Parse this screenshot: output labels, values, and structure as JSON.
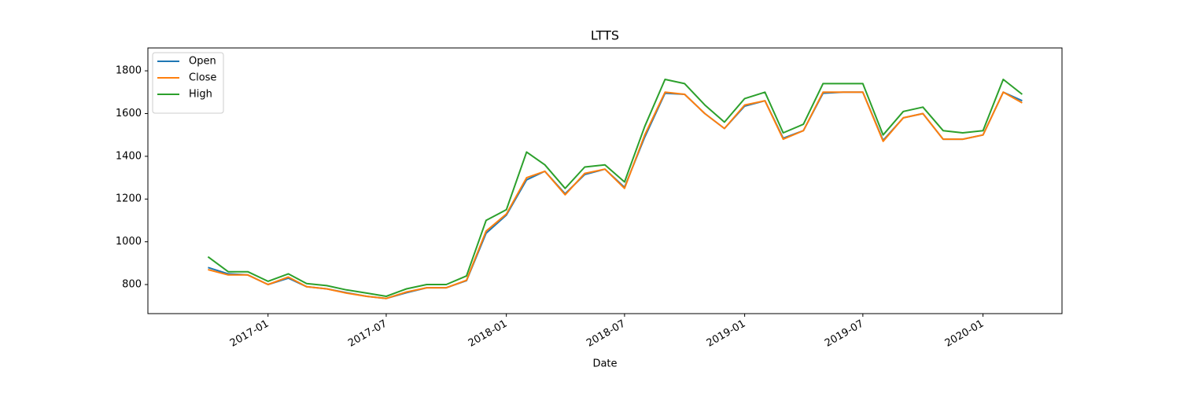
{
  "chart_data": {
    "type": "line",
    "title": "LTTS",
    "x_label": "Date",
    "x": [
      "2016-10",
      "2016-11",
      "2016-12",
      "2017-01",
      "2017-02",
      "2017-03",
      "2017-04",
      "2017-05",
      "2017-06",
      "2017-07",
      "2017-08",
      "2017-09",
      "2017-10",
      "2017-11",
      "2017-12",
      "2018-01",
      "2018-02",
      "2018-03",
      "2018-04",
      "2018-05",
      "2018-06",
      "2018-07",
      "2018-08",
      "2018-09",
      "2018-10",
      "2018-11",
      "2018-12",
      "2019-01",
      "2019-02",
      "2019-03",
      "2019-04",
      "2019-05",
      "2019-06",
      "2019-07",
      "2019-08",
      "2019-09",
      "2019-10",
      "2019-11",
      "2019-12",
      "2020-01",
      "2020-02",
      "2020-03"
    ],
    "series": [
      {
        "name": "Open",
        "color": "#1f77b4",
        "values": [
          880,
          850,
          845,
          800,
          830,
          790,
          780,
          762,
          745,
          735,
          762,
          785,
          785,
          818,
          1040,
          1125,
          1290,
          1330,
          1225,
          1315,
          1340,
          1255,
          1490,
          1695,
          1690,
          1600,
          1530,
          1635,
          1660,
          1485,
          1520,
          1695,
          1700,
          1700,
          1475,
          1580,
          1600,
          1480,
          1480,
          1500,
          1700,
          1660
        ]
      },
      {
        "name": "Close",
        "color": "#ff7f0e",
        "values": [
          870,
          845,
          845,
          800,
          835,
          790,
          780,
          760,
          745,
          735,
          765,
          785,
          785,
          820,
          1050,
          1130,
          1300,
          1330,
          1220,
          1320,
          1340,
          1250,
          1500,
          1700,
          1690,
          1600,
          1530,
          1640,
          1660,
          1480,
          1520,
          1700,
          1700,
          1700,
          1470,
          1580,
          1600,
          1480,
          1480,
          1500,
          1700,
          1650
        ]
      },
      {
        "name": "High",
        "color": "#2ca02c",
        "values": [
          930,
          860,
          860,
          815,
          850,
          805,
          795,
          775,
          760,
          745,
          780,
          800,
          800,
          840,
          1100,
          1150,
          1420,
          1360,
          1250,
          1350,
          1360,
          1280,
          1540,
          1760,
          1740,
          1640,
          1560,
          1670,
          1700,
          1510,
          1550,
          1740,
          1740,
          1740,
          1500,
          1610,
          1630,
          1520,
          1510,
          1520,
          1760,
          1690
        ]
      }
    ],
    "xlim": [
      "2016-07",
      "2020-05"
    ],
    "xticks": [
      "2017-01",
      "2017-07",
      "2018-01",
      "2018-07",
      "2019-01",
      "2019-07",
      "2020-01"
    ],
    "ylim": [
      664,
      1907
    ],
    "yticks": [
      800,
      1000,
      1200,
      1400,
      1600,
      1800
    ],
    "legend": "upper-left"
  }
}
